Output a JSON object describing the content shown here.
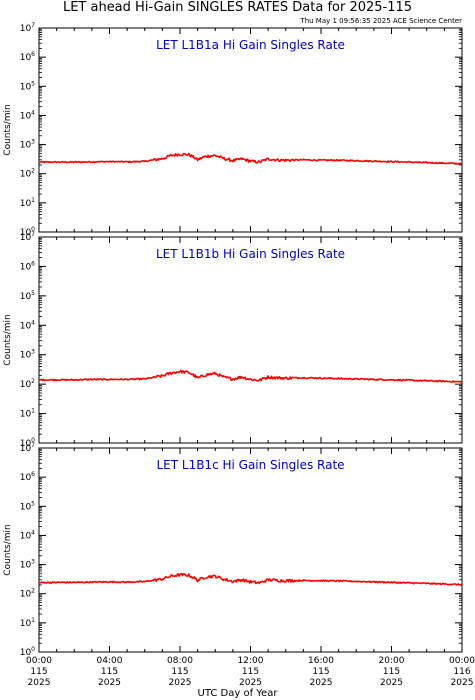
{
  "header": {
    "title": "LET ahead Hi-Gain SINGLES RATES Data for 2025-115",
    "timestamp": "Thu May  1 09:56:35 2025 ACE Science Center"
  },
  "colors": {
    "series": "#ff0000",
    "panel_title": "#0000cc",
    "axes": "#000000"
  },
  "xaxis_label": "UTC Day of Year",
  "chart_data": [
    {
      "type": "line",
      "title": "LET L1B1a Hi Gain Singles Rate",
      "ylabel": "Counts/min",
      "yscale": "log",
      "ylim": [
        1,
        10000000
      ],
      "ytick_exponents": [
        0,
        1,
        2,
        3,
        4,
        5,
        6,
        7
      ],
      "x_unit": "hours UTC",
      "xlim": [
        0,
        24
      ],
      "x": [
        0,
        1,
        2,
        3,
        4,
        5,
        6,
        7,
        7.5,
        8,
        8.5,
        9,
        9.5,
        10,
        10.5,
        11,
        11.5,
        12,
        12.5,
        13,
        13.5,
        14,
        15,
        16,
        17,
        18,
        19,
        20,
        21,
        22,
        23,
        24
      ],
      "values": [
        250,
        250,
        250,
        255,
        260,
        255,
        265,
        330,
        420,
        470,
        450,
        300,
        400,
        420,
        330,
        280,
        320,
        270,
        250,
        320,
        300,
        290,
        300,
        290,
        290,
        280,
        270,
        260,
        250,
        240,
        230,
        220
      ],
      "grid": false
    },
    {
      "type": "line",
      "title": "LET L1B1b Hi Gain Singles Rate",
      "ylabel": "Counts/min",
      "yscale": "log",
      "ylim": [
        1,
        10000000
      ],
      "ytick_exponents": [
        0,
        1,
        2,
        3,
        4,
        5,
        6,
        7
      ],
      "x_unit": "hours UTC",
      "xlim": [
        0,
        24
      ],
      "x": [
        0,
        1,
        2,
        3,
        4,
        5,
        6,
        7,
        7.5,
        8,
        8.5,
        9,
        9.5,
        10,
        10.5,
        11,
        11.5,
        12,
        12.5,
        13,
        13.5,
        14,
        15,
        16,
        17,
        18,
        19,
        20,
        21,
        22,
        23,
        24
      ],
      "values": [
        140,
        140,
        140,
        145,
        145,
        145,
        150,
        190,
        240,
        270,
        250,
        160,
        210,
        230,
        170,
        150,
        175,
        145,
        135,
        175,
        165,
        160,
        165,
        160,
        155,
        150,
        145,
        140,
        135,
        130,
        125,
        120
      ],
      "grid": false
    },
    {
      "type": "line",
      "title": "LET L1B1c Hi Gain Singles Rate",
      "ylabel": "Counts/min",
      "yscale": "log",
      "ylim": [
        1,
        10000000
      ],
      "ytick_exponents": [
        0,
        1,
        2,
        3,
        4,
        5,
        6,
        7
      ],
      "x_unit": "hours UTC",
      "xlim": [
        0,
        24
      ],
      "x": [
        0,
        1,
        2,
        3,
        4,
        5,
        6,
        7,
        7.5,
        8,
        8.5,
        9,
        9.5,
        10,
        10.5,
        11,
        11.5,
        12,
        12.5,
        13,
        13.5,
        14,
        15,
        16,
        17,
        18,
        19,
        20,
        21,
        22,
        23,
        24
      ],
      "values": [
        240,
        245,
        245,
        250,
        255,
        250,
        260,
        320,
        400,
        450,
        430,
        290,
        380,
        400,
        310,
        265,
        300,
        255,
        235,
        300,
        290,
        280,
        285,
        280,
        275,
        265,
        255,
        245,
        235,
        225,
        215,
        205
      ],
      "grid": false
    }
  ],
  "xticks": [
    {
      "hour": 0,
      "lines": [
        "00:00",
        "115",
        "2025"
      ]
    },
    {
      "hour": 4,
      "lines": [
        "04:00",
        "115",
        "2025"
      ]
    },
    {
      "hour": 8,
      "lines": [
        "08:00",
        "115",
        "2025"
      ]
    },
    {
      "hour": 12,
      "lines": [
        "12:00",
        "115",
        "2025"
      ]
    },
    {
      "hour": 16,
      "lines": [
        "16:00",
        "115",
        "2025"
      ]
    },
    {
      "hour": 20,
      "lines": [
        "20:00",
        "115",
        "2025"
      ]
    },
    {
      "hour": 24,
      "lines": [
        "00:00",
        "116",
        "2025"
      ]
    }
  ]
}
